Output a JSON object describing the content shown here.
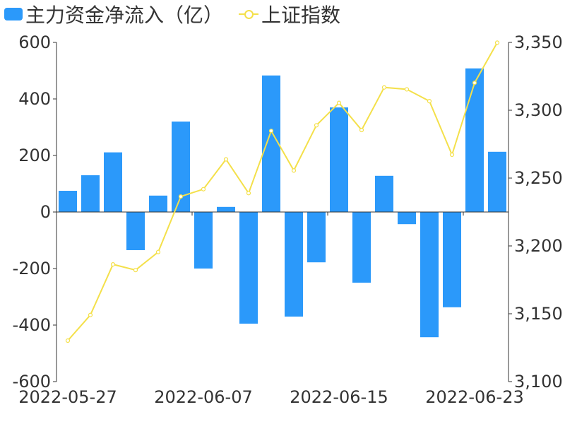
{
  "legend": {
    "bar_label": "主力资金净流入（亿）",
    "line_label": "上证指数"
  },
  "colors": {
    "bar": "#2b99fa",
    "line": "#f4e04a",
    "axis": "#333333",
    "text": "#333333"
  },
  "chart_data": {
    "type": "bar",
    "categories": [
      "2022-05-27",
      "2022-05-30",
      "2022-05-31",
      "2022-06-01",
      "2022-06-02",
      "2022-06-06",
      "2022-06-07",
      "2022-06-08",
      "2022-06-09",
      "2022-06-10",
      "2022-06-13",
      "2022-06-14",
      "2022-06-15",
      "2022-06-16",
      "2022-06-17",
      "2022-06-20",
      "2022-06-21",
      "2022-06-22",
      "2022-06-23",
      "2022-06-24"
    ],
    "x_tick_labels": [
      "2022-05-27",
      "2022-06-07",
      "2022-06-15",
      "2022-06-23"
    ],
    "series": [
      {
        "name": "主力资金净流入（亿）",
        "type": "bar",
        "axis": "left",
        "values": [
          75,
          130,
          211,
          -135,
          58,
          320,
          -200,
          18,
          -395,
          483,
          -370,
          -178,
          370,
          -250,
          128,
          -43,
          -443,
          -337,
          508,
          213
        ]
      },
      {
        "name": "上证指数",
        "type": "line",
        "axis": "right",
        "values": [
          3130.2,
          3149.1,
          3186.4,
          3182.2,
          3195.5,
          3236.4,
          3241.8,
          3263.8,
          3238.9,
          3284.8,
          3255.6,
          3288.9,
          3305.4,
          3285.4,
          3316.8,
          3315.4,
          3306.7,
          3267.2,
          3320.2,
          3349.8
        ]
      }
    ],
    "y_left": {
      "min": -600,
      "max": 600,
      "ticks": [
        -600,
        -400,
        -200,
        0,
        200,
        400,
        600
      ],
      "tick_labels": [
        "-600",
        "-400",
        "-200",
        "0",
        "200",
        "400",
        "600"
      ]
    },
    "y_right": {
      "min": 3100,
      "max": 3350,
      "ticks": [
        3100,
        3150,
        3200,
        3250,
        3300,
        3350
      ],
      "tick_labels": [
        "3,100",
        "3,150",
        "3,200",
        "3,250",
        "3,300",
        "3,350"
      ]
    },
    "legend_position": "top-left",
    "grid": false
  }
}
